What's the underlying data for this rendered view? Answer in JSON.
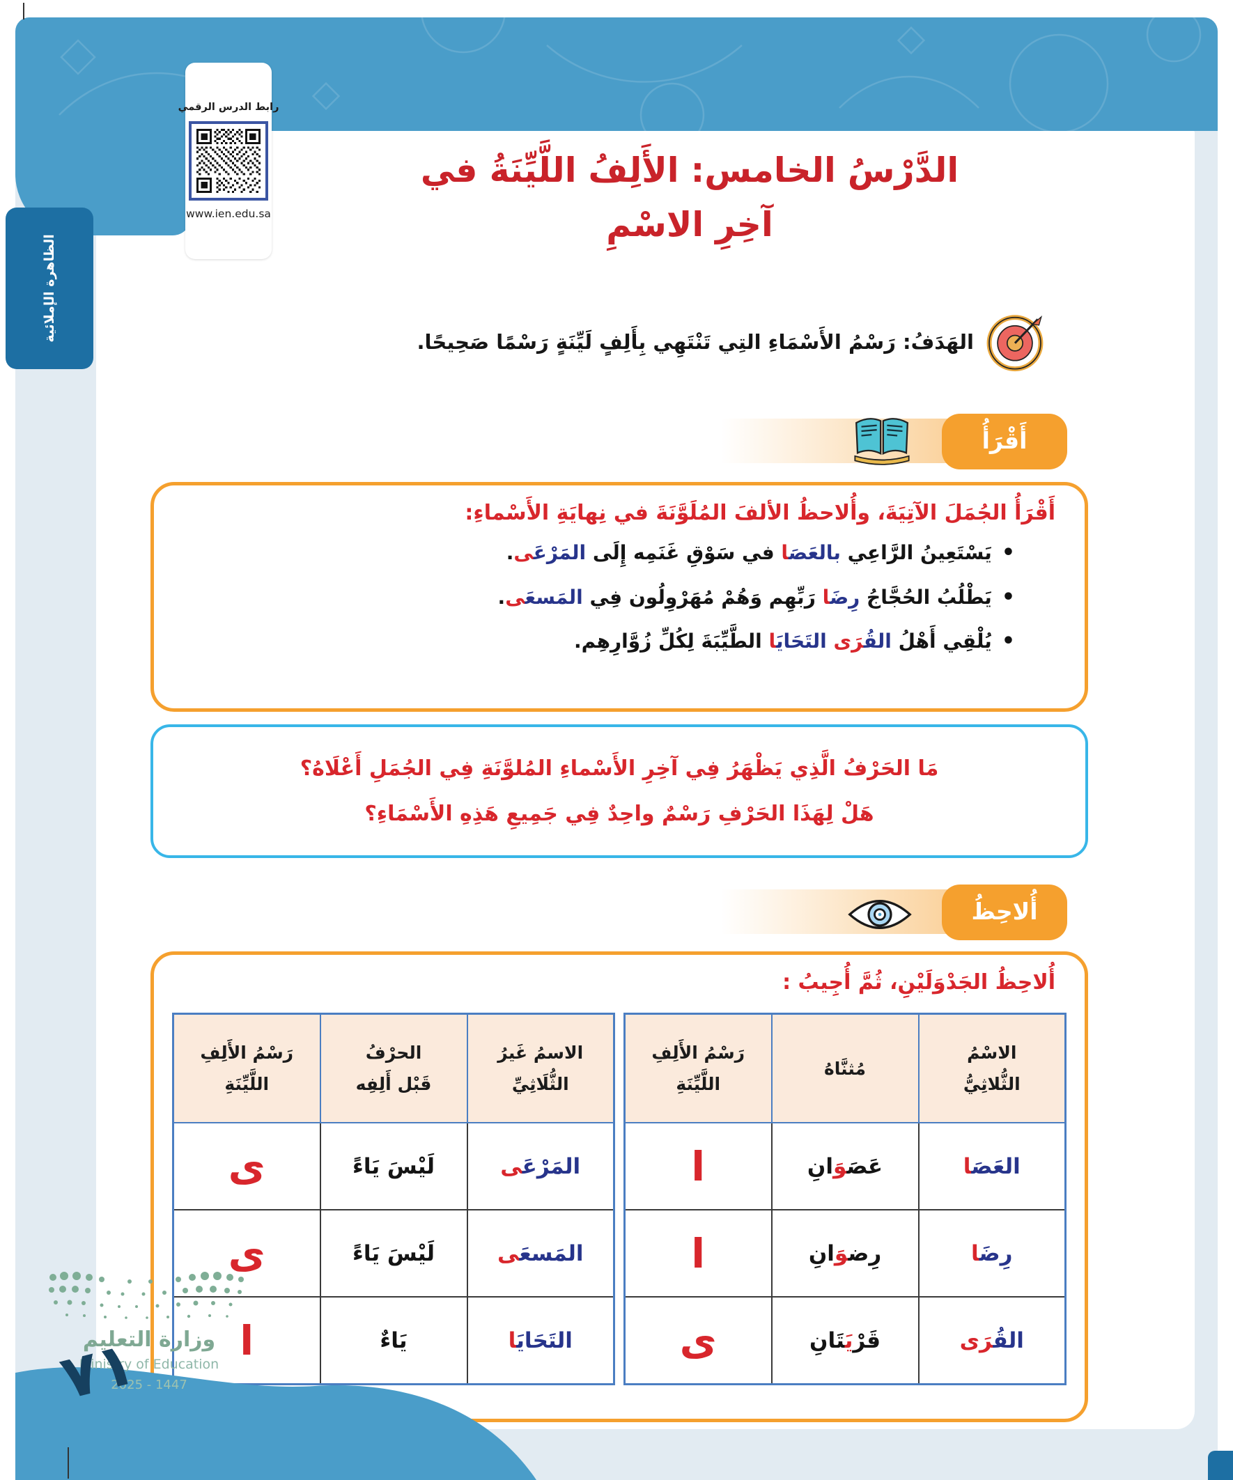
{
  "colors": {
    "band_blue": "#4A9DC9",
    "sidebar_blue": "#1D6FA3",
    "accent_orange": "#F5A02E",
    "title_red": "#C9232A",
    "heading_red": "#D8262C",
    "word_blue": "#27348B",
    "question_blue": "#38B6E8",
    "table_border": "#4B7EC2",
    "header_bg": "#FBEADC",
    "panel_bg": "#E2EBF2",
    "wave_blue": "#4A9DC9",
    "logo_green": "#7FA893"
  },
  "icons": {
    "qr": "qr-code",
    "target": "target-icon",
    "book": "open-book-icon",
    "eye": "eye-icon",
    "ministry_dots": "ministry-logo-dots"
  },
  "page": {
    "number": "٧١"
  },
  "sidebar": {
    "label": "الظاهرة الإملائية"
  },
  "qr": {
    "title": "رابط الدرس الرقمي",
    "url": "www.ien.edu.sa"
  },
  "lesson": {
    "title_line1": "الدَّرْسُ الخامس: الأَلِفُ اللَّيِّنَةُ في",
    "title_line2": "آخِرِ الاسْمِ",
    "goal": "الهَدَفُ: رَسْمُ الأَسْمَاءِ التِي تَنْتَهِي بِأَلِفٍ لَيِّنَةٍ رَسْمًا صَحِيحًا."
  },
  "read_section": {
    "badge": "أَقْرَأُ",
    "heading": "أَقْرَأُ الجُمَلَ الآتِيَةَ، وأُلاحظُ الألفَ المُلَوَّنَةَ في نِهايَةِ الأَسْماءِ:",
    "bullets": [
      {
        "segments": [
          [
            "يَسْتَعِينُ الرَّاعِي ",
            "k"
          ],
          [
            "بالعَصَ‍",
            "b"
          ],
          [
            "‍ا",
            "r"
          ],
          [
            " في سَوْقِ غَنَمِه إِلَى ",
            "k"
          ],
          [
            "المَرْعَ‍",
            "b"
          ],
          [
            "‍ى",
            "r"
          ],
          [
            ".",
            "k"
          ]
        ]
      },
      {
        "segments": [
          [
            "يَطْلُبُ الحُجَّاجُ ",
            "k"
          ],
          [
            "رِضَ‍",
            "b"
          ],
          [
            "‍ا",
            "r"
          ],
          [
            " رَبِّهِم وَهُمْ مُهَرْوِلُون فِي ",
            "k"
          ],
          [
            "المَسعَ‍",
            "b"
          ],
          [
            "‍ى",
            "r"
          ],
          [
            ".",
            "k"
          ]
        ]
      },
      {
        "segments": [
          [
            "يُلْقِي أَهْلُ ",
            "k"
          ],
          [
            "القُ‍",
            "b"
          ],
          [
            "‍رَى",
            "r"
          ],
          [
            " ",
            "k"
          ],
          [
            "التَحَايَ‍",
            "b"
          ],
          [
            "‍ا",
            "r"
          ],
          [
            " الطَّيِّبَةَ لِكُلِّ زُوَّارِهِم.",
            "k"
          ]
        ]
      }
    ]
  },
  "question_box": {
    "line1": "مَا الحَرْفُ الَّذِي يَظْهَرُ فِي آخِرِ الأَسْماءِ المُلوَّنَةِ فِي الجُمَلِ أَعْلَاهُ؟",
    "line2": "هَلْ لِهَذَا الحَرْفِ رَسْمٌ واحِدٌ فِي جَمِيعِ هَذِهِ الأَسْمَاءِ؟"
  },
  "observe_section": {
    "badge": "أُلاحِظُ",
    "heading": "أُلاحِظُ الجَدْوَلَيْنِ، ثُمَّ أُجِيبُ :",
    "table_trilateral": {
      "headers": [
        "الاسْمُ\nالثُّلاثِيُّ",
        "مُثنَّاهُ",
        "رَسْمُ الأَلِفِ\nاللَّيِّنَةِ"
      ],
      "rows": [
        {
          "name": [
            [
              "العَصَ‍",
              "b"
            ],
            [
              "‍ا",
              "r"
            ]
          ],
          "dual": [
            [
              "عَصَ‍",
              "k"
            ],
            [
              "‍وَ",
              "r"
            ],
            [
              "انِ",
              "k"
            ]
          ],
          "alif": "ا"
        },
        {
          "name": [
            [
              "رِضَ‍",
              "b"
            ],
            [
              "‍ا",
              "r"
            ]
          ],
          "dual": [
            [
              "رِض‍",
              "k"
            ],
            [
              "‍وَ",
              "r"
            ],
            [
              "انِ",
              "k"
            ]
          ],
          "alif": "ا"
        },
        {
          "name": [
            [
              "القُ‍",
              "b"
            ],
            [
              "‍رَى",
              "r"
            ]
          ],
          "dual": [
            [
              "قَرْ",
              "k"
            ],
            [
              "يَ‍",
              "r"
            ],
            [
              "‍تَانِ",
              "k"
            ]
          ],
          "alif": "ى"
        }
      ]
    },
    "table_non_trilateral": {
      "headers": [
        "الاسمُ غَيرُ\nالثُّلَاثِيِّ",
        "الحرْفُ\nقَبْل أَلِفِه",
        "رَسْمُ الأَلِفِ\nاللَّيِّنَةِ"
      ],
      "rows": [
        {
          "name": [
            [
              "المَرْعَ‍",
              "b"
            ],
            [
              "‍ى",
              "r"
            ]
          ],
          "letter": "لَيْسَ يَاءً",
          "alif": "ى"
        },
        {
          "name": [
            [
              "المَسعَ‍",
              "b"
            ],
            [
              "‍ى",
              "r"
            ]
          ],
          "letter": "لَيْسَ يَاءً",
          "alif": "ى"
        },
        {
          "name": [
            [
              "التَحَايَ‍",
              "b"
            ],
            [
              "‍ا",
              "r"
            ]
          ],
          "letter": "يَاءٌ",
          "alif": "ا"
        }
      ]
    }
  },
  "footer": {
    "ministry_ar": "وزارة التعليم",
    "ministry_en": "Ministry of Education",
    "year": "2025 - 1447"
  }
}
